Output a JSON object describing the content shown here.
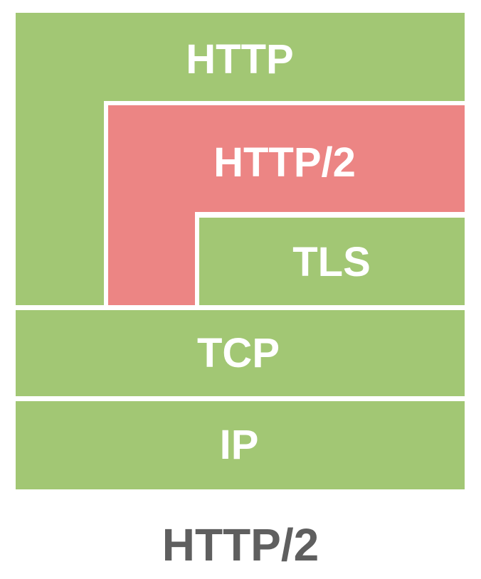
{
  "diagram": {
    "caption": "HTTP/2",
    "layers": {
      "http": "HTTP",
      "http2": "HTTP/2",
      "tls": "TLS",
      "tcp": "TCP",
      "ip": "IP"
    },
    "colors": {
      "green": "#a2c774",
      "red": "#ec8584",
      "caption": "#5f5f5f",
      "label": "#ffffff"
    }
  }
}
